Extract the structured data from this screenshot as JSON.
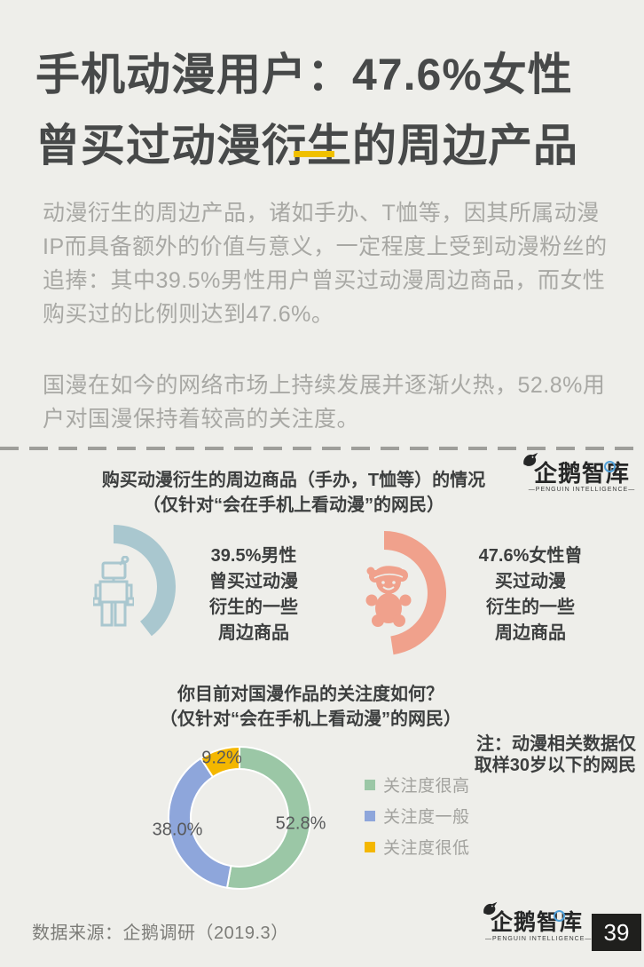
{
  "colors": {
    "background": "#eeeeea",
    "title_text": "#474949",
    "body_text": "#a8a8a4",
    "heading_text": "#3d3f3f",
    "accent_yellow": "#f0c000",
    "divider_gray": "#9e9e9a",
    "brand_dark": "#262727",
    "brand_blue_ring": "#4f9fd8",
    "page_box_bg": "#1f1f1d",
    "page_box_text": "#ffffff",
    "donut_label_text": "#58595b",
    "legend_text": "#a2a29e"
  },
  "header": {
    "title_line1": "手机动漫用户：47.6%女性",
    "title_line2": "曾买过动漫衍生的周边产品"
  },
  "intro": {
    "paragraph1": "动漫衍生的周边产品，诸如手办、T恤等，因其所属动漫IP而具备额外的价值与意义，一定程度上受到动漫粉丝的追捧：其中39.5%男性用户曾买过动漫周边商品，而女性购买过的比例则达到47.6%。",
    "paragraph2": "国漫在如今的网络市场上持续发展并逐渐火热，52.8%用户对国漫保持着较高的关注度。"
  },
  "brand": {
    "name": "企鹅智库",
    "tagline": "—PENGUIN INTELLIGENCE—",
    "page_number": "39",
    "icon": "penguin-icon"
  },
  "chart_data": [
    {
      "type": "pie",
      "subtype": "gauge-pair",
      "title": "购买动漫衍生的周边商品（手办，T恤等）的情况",
      "subtitle": "（仅针对“会在手机上看动漫”的网民）",
      "max": 100,
      "unit": "%",
      "start_angle_deg": 0,
      "direction": "clockwise",
      "series": [
        {
          "name": "男性曾买过动漫衍生周边商品",
          "value": 39.5,
          "color": "#a9c7cf",
          "icon": "robot-icon",
          "label_lines": [
            "39.5%男性",
            "曾买过动漫",
            "衍生的一些",
            "周边商品"
          ]
        },
        {
          "name": "女性曾买过动漫衍生周边商品",
          "value": 47.6,
          "color": "#f0a18c",
          "icon": "teddy-bear-icon",
          "label_lines": [
            "47.6%女性曾",
            "买过动漫",
            "衍生的一些",
            "周边商品"
          ]
        }
      ]
    },
    {
      "type": "pie",
      "donut": true,
      "title": "你目前对国漫作品的关注度如何？",
      "subtitle": "（仅针对“会在手机上看动漫”的网民）",
      "categories": [
        "关注度很高",
        "关注度一般",
        "关注度很低"
      ],
      "values": [
        52.8,
        38.0,
        9.2
      ],
      "value_labels": [
        "52.8%",
        "38.0%",
        "9.2%"
      ],
      "colors": [
        "#9bc7a6",
        "#8ea6db",
        "#f4b700"
      ],
      "legend_position": "right",
      "start_angle_deg": 0,
      "direction": "clockwise"
    }
  ],
  "note": {
    "line1": "注：动漫相关数据仅",
    "line2": "取样30岁以下的网民"
  },
  "footer": {
    "source": "数据来源：企鹅调研（2019.3）"
  }
}
